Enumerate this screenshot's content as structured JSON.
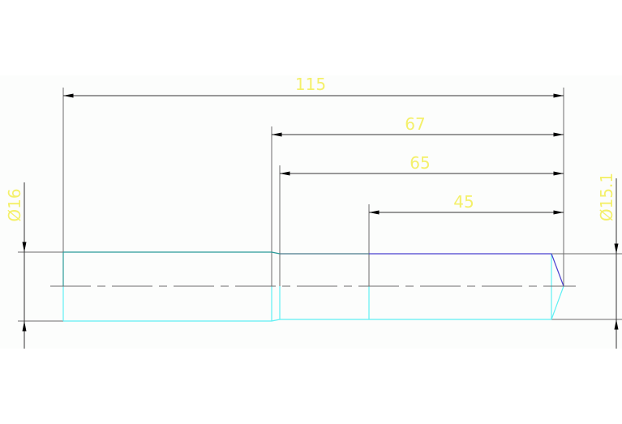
{
  "drawing": {
    "dimensions": [
      {
        "label": "115",
        "kind": "linear"
      },
      {
        "label": "67",
        "kind": "linear"
      },
      {
        "label": "65",
        "kind": "linear"
      },
      {
        "label": "45",
        "kind": "linear"
      },
      {
        "label": "Ø16",
        "kind": "diameter"
      },
      {
        "label": "Ø15.1",
        "kind": "diameter"
      }
    ],
    "colors": {
      "background": "#fcfdfc",
      "dimension_line": "#6b6b6b",
      "dimension_text": "#f4f06a",
      "outline_cyan": "#5ff0f4",
      "outline_teal": "#2a9a98",
      "outline_blue": "#4a3fd0",
      "centerline": "#6b6b6b"
    }
  }
}
